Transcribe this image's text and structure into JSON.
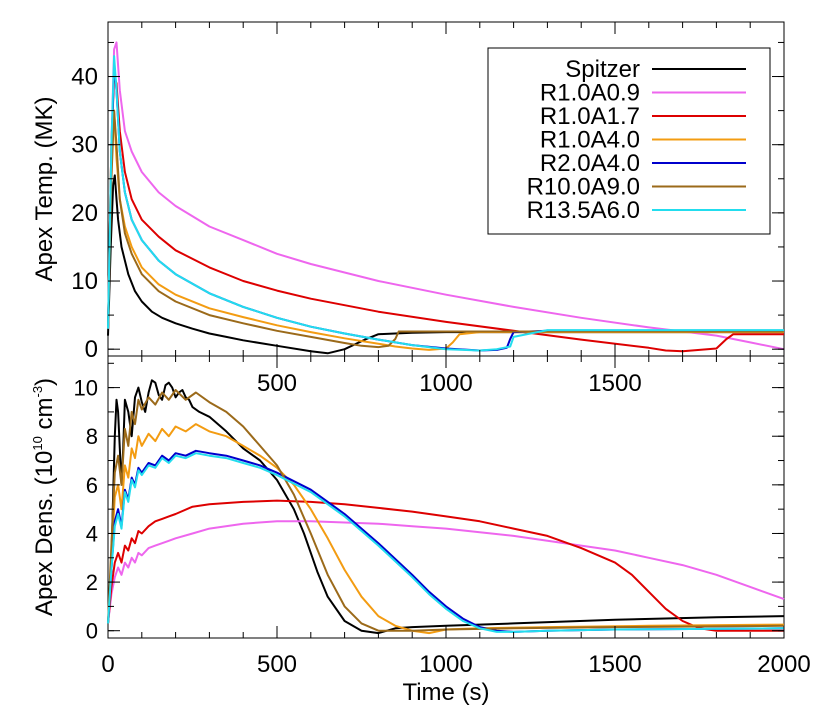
{
  "figure": {
    "top_ylabel": "Apex Temp. (MK)",
    "bottom_ylabel": "Apex Dens. (10",
    "bottom_ylabel_exp": "10",
    "bottom_ylabel_unit": " cm",
    "bottom_ylabel_unit_exp": "-3",
    "bottom_ylabel_close": ")",
    "xlabel": "Time (s)"
  },
  "chart_data": [
    {
      "type": "line",
      "panel": "top",
      "ylabel": "Apex Temp. (MK)",
      "xlim": [
        0,
        2000
      ],
      "ylim": [
        -1,
        48
      ],
      "xticks": [
        500,
        1000,
        1500
      ],
      "yticks": [
        0,
        10,
        20,
        30,
        40
      ],
      "grid": false,
      "legend": "top-right",
      "series": [
        {
          "name": "Spitzer",
          "color": "#000000",
          "x": [
            0,
            8,
            15,
            20,
            25,
            30,
            40,
            50,
            60,
            80,
            100,
            130,
            160,
            200,
            250,
            300,
            350,
            400,
            500,
            600,
            650,
            700,
            760,
            800,
            900,
            1000,
            1200,
            1500,
            1800,
            2000
          ],
          "y": [
            2,
            15,
            24,
            25.5,
            22,
            19,
            15,
            13,
            11,
            8.5,
            7,
            5.5,
            4.6,
            3.8,
            3,
            2.3,
            1.8,
            1.3,
            0.5,
            -0.3,
            -0.6,
            0,
            1.4,
            2.2,
            2.4,
            2.5,
            2.5,
            2.5,
            2.5,
            2.5
          ]
        },
        {
          "name": "R1.0A0.9",
          "color": "#ee66ee",
          "x": [
            0,
            10,
            18,
            25,
            35,
            50,
            70,
            100,
            150,
            200,
            300,
            400,
            500,
            600,
            800,
            1000,
            1200,
            1400,
            1600,
            1800,
            1900,
            2000
          ],
          "y": [
            3,
            30,
            44,
            45,
            38,
            32,
            29,
            26,
            23,
            21,
            18,
            16,
            14,
            12.5,
            10,
            8,
            6.2,
            4.6,
            3.2,
            2,
            1,
            0
          ]
        },
        {
          "name": "R1.0A1.7",
          "color": "#dd0000",
          "x": [
            0,
            10,
            18,
            25,
            35,
            50,
            70,
            100,
            150,
            200,
            300,
            400,
            500,
            600,
            800,
            1000,
            1200,
            1400,
            1600,
            1650,
            1700,
            1800,
            1830,
            1850,
            2000
          ],
          "y": [
            3,
            30,
            40,
            39,
            32,
            26,
            22,
            19,
            16.5,
            14.5,
            12,
            10,
            8.6,
            7.4,
            5.5,
            4,
            2.7,
            1.4,
            0.2,
            -0.2,
            -0.3,
            0.1,
            1.5,
            2.2,
            2.2
          ]
        },
        {
          "name": "R1.0A4.0",
          "color": "#f39c12",
          "x": [
            0,
            10,
            18,
            25,
            35,
            50,
            70,
            100,
            150,
            200,
            300,
            400,
            500,
            600,
            700,
            800,
            850,
            900,
            950,
            1000,
            1020,
            1040,
            1100,
            1500,
            2000
          ],
          "y": [
            3,
            30,
            35,
            28,
            22,
            18,
            15,
            12,
            9.5,
            8,
            6,
            4.7,
            3.5,
            2.5,
            1.6,
            0.8,
            0.4,
            0.1,
            -0.1,
            0.1,
            1,
            2.2,
            2.5,
            2.5,
            2.5
          ]
        },
        {
          "name": "R2.0A4.0",
          "color": "#0000cc",
          "x": [
            0,
            10,
            18,
            25,
            35,
            50,
            70,
            100,
            150,
            200,
            300,
            400,
            500,
            600,
            700,
            800,
            900,
            1000,
            1100,
            1150,
            1180,
            1190,
            1200,
            1300,
            1600,
            2000
          ],
          "y": [
            3,
            28,
            42,
            38,
            29,
            23,
            19,
            16,
            13,
            11,
            8.2,
            6.2,
            4.6,
            3.3,
            2.3,
            1.4,
            0.6,
            0.1,
            -0.2,
            -0.1,
            0.2,
            1.5,
            2.5,
            2.7,
            2.7,
            2.7
          ]
        },
        {
          "name": "R10.0A9.0",
          "color": "#9b6a1a",
          "x": [
            0,
            10,
            18,
            25,
            35,
            50,
            70,
            100,
            150,
            200,
            300,
            400,
            500,
            600,
            700,
            750,
            800,
            830,
            850,
            860,
            900,
            1200,
            1600,
            2000
          ],
          "y": [
            3,
            25,
            35,
            30,
            22,
            17,
            14,
            11,
            8.5,
            7,
            5,
            3.8,
            2.7,
            1.8,
            0.9,
            0.5,
            0.3,
            0.5,
            1.5,
            2.6,
            2.6,
            2.6,
            2.6,
            2.6
          ]
        },
        {
          "name": "R13.5A6.0",
          "color": "#22ddee",
          "x": [
            0,
            10,
            18,
            25,
            35,
            50,
            70,
            100,
            150,
            200,
            300,
            400,
            500,
            600,
            700,
            800,
            900,
            1000,
            1100,
            1150,
            1190,
            1200,
            1300,
            1600,
            2000
          ],
          "y": [
            3,
            30,
            43,
            38,
            29,
            23,
            19,
            16,
            13,
            11,
            8.2,
            6.2,
            4.6,
            3.3,
            2.3,
            1.4,
            0.6,
            0,
            -0.2,
            0,
            0.4,
            1.8,
            2.8,
            2.8,
            2.8
          ]
        }
      ]
    },
    {
      "type": "line",
      "panel": "bottom",
      "ylabel": "Apex Dens. (10^10 cm^-3)",
      "xlabel": "Time (s)",
      "xlim": [
        0,
        2000
      ],
      "ylim": [
        -0.3,
        11.3
      ],
      "xticks": [
        0,
        500,
        1000,
        1500,
        2000
      ],
      "yticks": [
        0,
        2,
        4,
        6,
        8,
        10
      ],
      "grid": false,
      "series": [
        {
          "name": "Spitzer",
          "color": "#000000",
          "x": [
            0,
            5,
            10,
            15,
            20,
            25,
            30,
            35,
            40,
            45,
            50,
            60,
            70,
            80,
            90,
            100,
            110,
            120,
            130,
            140,
            150,
            160,
            170,
            180,
            190,
            200,
            210,
            220,
            230,
            240,
            250,
            270,
            300,
            350,
            400,
            450,
            500,
            550,
            580,
            600,
            620,
            650,
            700,
            750,
            800,
            850,
            900,
            1000,
            1200,
            1500,
            1800,
            2000
          ],
          "y": [
            0.3,
            1,
            3,
            5.5,
            8,
            9.5,
            9,
            7.5,
            6,
            7.5,
            9.5,
            9,
            8,
            9.6,
            10,
            9.4,
            9,
            9.8,
            10.3,
            10.2,
            9.7,
            9.5,
            10.1,
            10.2,
            10,
            9.6,
            9.8,
            9.9,
            9.6,
            9.5,
            9.2,
            9,
            8.8,
            8.2,
            7.5,
            7,
            6.2,
            5,
            4,
            3.2,
            2.4,
            1.4,
            0.4,
            0,
            -0.1,
            0.1,
            0.15,
            0.2,
            0.3,
            0.45,
            0.55,
            0.6
          ]
        },
        {
          "name": "R1.0A0.9",
          "color": "#ee66ee",
          "x": [
            0,
            10,
            20,
            30,
            40,
            50,
            60,
            70,
            80,
            90,
            100,
            120,
            140,
            160,
            180,
            200,
            250,
            300,
            400,
            500,
            600,
            700,
            800,
            900,
            1000,
            1100,
            1200,
            1300,
            1400,
            1500,
            1600,
            1700,
            1800,
            1900,
            2000
          ],
          "y": [
            0.3,
            1.5,
            2.2,
            2.6,
            2.3,
            2.8,
            2.6,
            3,
            2.8,
            3.2,
            3.1,
            3.4,
            3.5,
            3.6,
            3.7,
            3.8,
            4,
            4.2,
            4.4,
            4.5,
            4.5,
            4.45,
            4.4,
            4.3,
            4.2,
            4.05,
            3.9,
            3.7,
            3.5,
            3.3,
            3,
            2.7,
            2.3,
            1.8,
            1.3
          ]
        },
        {
          "name": "R1.0A1.7",
          "color": "#dd0000",
          "x": [
            0,
            10,
            20,
            30,
            40,
            50,
            60,
            70,
            80,
            90,
            100,
            120,
            140,
            160,
            180,
            200,
            250,
            300,
            400,
            500,
            600,
            700,
            800,
            900,
            1000,
            1100,
            1200,
            1300,
            1400,
            1500,
            1550,
            1600,
            1650,
            1700,
            1750,
            1800,
            1900,
            2000
          ],
          "y": [
            0.3,
            1.8,
            2.8,
            3.2,
            2.8,
            3.5,
            3.3,
            3.8,
            3.6,
            4.1,
            4,
            4.3,
            4.5,
            4.6,
            4.7,
            4.8,
            5.1,
            5.2,
            5.3,
            5.35,
            5.3,
            5.2,
            5.05,
            4.9,
            4.7,
            4.5,
            4.2,
            3.9,
            3.4,
            2.8,
            2.3,
            1.6,
            0.9,
            0.4,
            0.1,
            0,
            0,
            0
          ]
        },
        {
          "name": "R1.0A4.0",
          "color": "#f39c12",
          "x": [
            0,
            10,
            20,
            30,
            40,
            50,
            60,
            70,
            80,
            90,
            100,
            120,
            140,
            160,
            180,
            200,
            230,
            260,
            300,
            350,
            400,
            450,
            500,
            550,
            600,
            650,
            700,
            750,
            800,
            850,
            900,
            950,
            1000,
            1100,
            1300,
            1600,
            2000
          ],
          "y": [
            0.3,
            3,
            5.5,
            6,
            5,
            6.8,
            6.3,
            7.5,
            7.1,
            8,
            7.6,
            8.1,
            7.8,
            8.3,
            8,
            8.4,
            8.2,
            8.5,
            8.2,
            8,
            7.6,
            7.2,
            6.7,
            6,
            5,
            3.8,
            2.5,
            1.4,
            0.6,
            0.2,
            0,
            -0.1,
            0.05,
            0.1,
            0.15,
            0.2,
            0.25
          ]
        },
        {
          "name": "R2.0A4.0",
          "color": "#0000cc",
          "x": [
            0,
            10,
            20,
            30,
            40,
            50,
            60,
            70,
            80,
            90,
            100,
            120,
            140,
            160,
            180,
            200,
            230,
            260,
            300,
            350,
            400,
            450,
            500,
            600,
            700,
            800,
            900,
            950,
            1000,
            1050,
            1100,
            1150,
            1200,
            1300,
            1500,
            2000
          ],
          "y": [
            0.3,
            2.5,
            4.5,
            5,
            4.3,
            5.8,
            5.4,
            6.3,
            6,
            6.7,
            6.5,
            6.9,
            6.8,
            7.2,
            7,
            7.3,
            7.2,
            7.4,
            7.3,
            7.2,
            7,
            6.8,
            6.5,
            5.8,
            4.8,
            3.6,
            2.3,
            1.6,
            1,
            0.5,
            0.15,
            0,
            -0.05,
            0,
            0.05,
            0.1
          ]
        },
        {
          "name": "R10.0A9.0",
          "color": "#9b6a1a",
          "x": [
            0,
            10,
            20,
            30,
            40,
            50,
            60,
            70,
            80,
            90,
            100,
            120,
            140,
            160,
            180,
            200,
            230,
            260,
            300,
            350,
            400,
            450,
            500,
            550,
            600,
            650,
            700,
            750,
            800,
            900,
            1000,
            1200,
            1500,
            2000
          ],
          "y": [
            0.3,
            3.5,
            6.5,
            7.2,
            6,
            8.3,
            7.6,
            9,
            8.5,
            9.5,
            9.1,
            9.6,
            9.3,
            9.8,
            9.5,
            9.9,
            9.5,
            9.8,
            9.4,
            9,
            8.4,
            7.6,
            6.8,
            5.6,
            4,
            2.3,
            1,
            0.3,
            0,
            0,
            0.05,
            0.1,
            0.15,
            0.2
          ]
        },
        {
          "name": "R13.5A6.0",
          "color": "#22ddee",
          "x": [
            0,
            10,
            20,
            30,
            40,
            50,
            60,
            70,
            80,
            90,
            100,
            120,
            140,
            160,
            180,
            200,
            230,
            260,
            300,
            350,
            400,
            450,
            500,
            600,
            700,
            800,
            900,
            950,
            1000,
            1050,
            1100,
            1150,
            1200,
            1300,
            1500,
            2000
          ],
          "y": [
            0.3,
            2.5,
            4.3,
            4.8,
            4.2,
            5.7,
            5.3,
            6.2,
            5.9,
            6.6,
            6.4,
            6.8,
            6.7,
            7.1,
            6.9,
            7.2,
            7.1,
            7.3,
            7.2,
            7.1,
            6.9,
            6.7,
            6.4,
            5.7,
            4.7,
            3.5,
            2.2,
            1.5,
            0.9,
            0.4,
            0.1,
            -0.05,
            -0.05,
            0,
            0.05,
            0.1
          ]
        }
      ]
    }
  ]
}
